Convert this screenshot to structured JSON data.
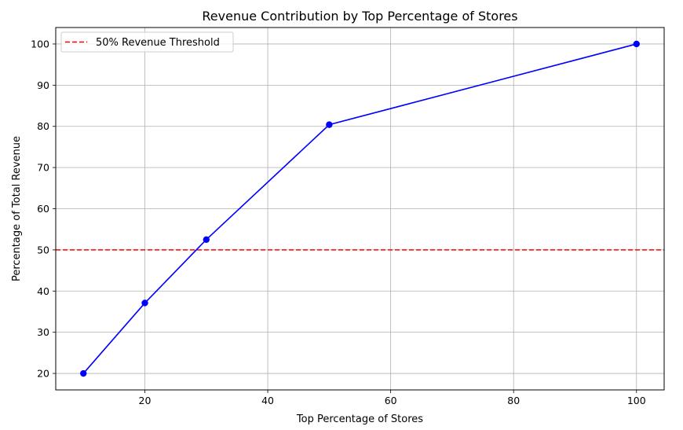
{
  "chart_data": {
    "type": "line",
    "title": "Revenue Contribution by Top Percentage of Stores",
    "xlabel": "Top Percentage of Stores",
    "ylabel": "Percentage of Total Revenue",
    "x": [
      10,
      20,
      30,
      50,
      100
    ],
    "series": [
      {
        "values": [
          20.0,
          37.1,
          52.5,
          80.4,
          100.0
        ],
        "color": "#0000ff",
        "marker": "circle"
      }
    ],
    "reference_lines": [
      {
        "orientation": "horizontal",
        "y": 50,
        "label": "50% Revenue Threshold",
        "color": "#ff0000",
        "style": "dashed"
      }
    ],
    "xlim": [
      5.5,
      104.5
    ],
    "ylim": [
      16.0,
      104.0
    ],
    "xticks": [
      20,
      40,
      60,
      80,
      100
    ],
    "yticks": [
      20,
      30,
      40,
      50,
      60,
      70,
      80,
      90,
      100
    ],
    "grid": true,
    "legend": {
      "position": "top-left",
      "entries": [
        "50% Revenue Threshold"
      ]
    }
  }
}
